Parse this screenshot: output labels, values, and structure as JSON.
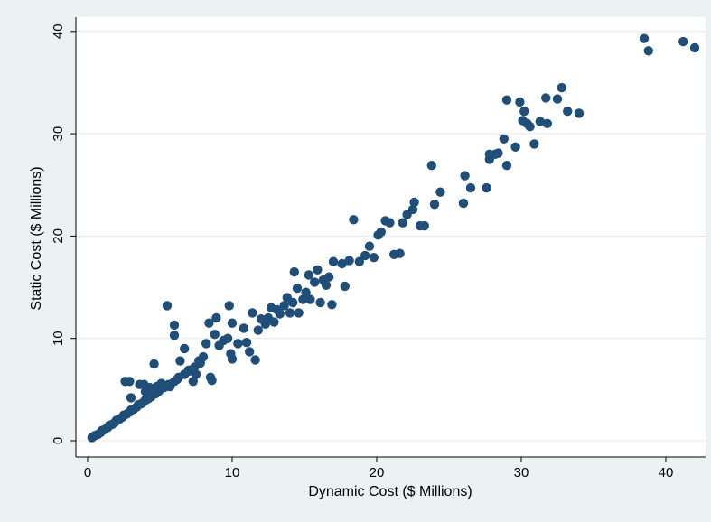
{
  "chart_data": {
    "type": "scatter",
    "xlabel": "Dynamic Cost ($ Millions)",
    "ylabel": "Static Cost ($ Millions)",
    "xlim": [
      0,
      42
    ],
    "ylim": [
      0,
      40
    ],
    "x_ticks": [
      "0",
      "10",
      "20",
      "30",
      "40"
    ],
    "y_ticks": [
      "0",
      "10",
      "20",
      "30",
      "40"
    ],
    "grid": "horizontal",
    "legend": "none",
    "colors": {
      "marker": "#1f4e79",
      "plot_bg": "#ffffff",
      "outer_bg": "#eaf2f3",
      "grid": "#e1e8ea"
    },
    "series": [
      {
        "points": [
          [
            0.3,
            0.3
          ],
          [
            0.5,
            0.5
          ],
          [
            0.7,
            0.6
          ],
          [
            0.9,
            0.8
          ],
          [
            1.0,
            1.0
          ],
          [
            1.2,
            1.1
          ],
          [
            1.4,
            1.3
          ],
          [
            1.5,
            1.5
          ],
          [
            1.7,
            1.6
          ],
          [
            1.9,
            1.8
          ],
          [
            2.0,
            2.0
          ],
          [
            2.2,
            2.1
          ],
          [
            2.4,
            2.3
          ],
          [
            2.5,
            2.5
          ],
          [
            2.7,
            2.6
          ],
          [
            2.9,
            2.8
          ],
          [
            3.0,
            3.0
          ],
          [
            3.2,
            3.1
          ],
          [
            3.4,
            3.3
          ],
          [
            3.5,
            3.5
          ],
          [
            3.7,
            3.6
          ],
          [
            3.9,
            3.8
          ],
          [
            4.0,
            4.0
          ],
          [
            4.2,
            4.1
          ],
          [
            4.4,
            4.3
          ],
          [
            4.5,
            4.5
          ],
          [
            4.7,
            4.6
          ],
          [
            4.9,
            4.8
          ],
          [
            5.0,
            5.0
          ],
          [
            5.3,
            5.2
          ],
          [
            5.6,
            5.5
          ],
          [
            6.0,
            5.8
          ],
          [
            6.3,
            6.2
          ],
          [
            6.7,
            6.5
          ],
          [
            7.0,
            6.9
          ],
          [
            7.4,
            7.2
          ],
          [
            7.8,
            7.6
          ],
          [
            2.6,
            5.8
          ],
          [
            2.9,
            5.8
          ],
          [
            3.0,
            4.2
          ],
          [
            3.6,
            5.5
          ],
          [
            3.9,
            5.5
          ],
          [
            4.0,
            4.8
          ],
          [
            4.3,
            5.2
          ],
          [
            4.6,
            7.5
          ],
          [
            4.8,
            5.3
          ],
          [
            5.1,
            5.6
          ],
          [
            5.5,
            13.2
          ],
          [
            5.7,
            5.3
          ],
          [
            6.0,
            11.3
          ],
          [
            6.0,
            10.3
          ],
          [
            6.2,
            6.0
          ],
          [
            6.4,
            7.8
          ],
          [
            6.7,
            9.0
          ],
          [
            7.0,
            6.8
          ],
          [
            7.3,
            5.8
          ],
          [
            7.5,
            6.5
          ],
          [
            7.7,
            7.8
          ],
          [
            8.0,
            8.2
          ],
          [
            8.2,
            9.5
          ],
          [
            8.4,
            11.5
          ],
          [
            8.5,
            6.2
          ],
          [
            8.6,
            5.9
          ],
          [
            8.8,
            10.4
          ],
          [
            8.9,
            12.0
          ],
          [
            9.1,
            9.3
          ],
          [
            9.4,
            9.8
          ],
          [
            9.7,
            10.0
          ],
          [
            9.8,
            13.2
          ],
          [
            9.9,
            8.5
          ],
          [
            10.0,
            8.0
          ],
          [
            10.0,
            11.5
          ],
          [
            10.4,
            9.5
          ],
          [
            10.8,
            11.0
          ],
          [
            11.0,
            9.6
          ],
          [
            11.2,
            8.7
          ],
          [
            11.4,
            12.5
          ],
          [
            11.6,
            7.9
          ],
          [
            11.8,
            10.8
          ],
          [
            12.0,
            11.9
          ],
          [
            12.3,
            11.4
          ],
          [
            12.5,
            12.0
          ],
          [
            12.7,
            13.0
          ],
          [
            12.9,
            11.6
          ],
          [
            13.1,
            12.8
          ],
          [
            13.3,
            12.4
          ],
          [
            13.6,
            13.2
          ],
          [
            13.8,
            14.0
          ],
          [
            14.0,
            12.5
          ],
          [
            14.2,
            13.5
          ],
          [
            14.3,
            16.5
          ],
          [
            14.5,
            14.9
          ],
          [
            14.6,
            12.5
          ],
          [
            14.9,
            13.8
          ],
          [
            15.1,
            14.5
          ],
          [
            15.3,
            16.2
          ],
          [
            15.4,
            13.8
          ],
          [
            15.7,
            15.5
          ],
          [
            15.9,
            16.7
          ],
          [
            16.1,
            13.5
          ],
          [
            16.3,
            15.7
          ],
          [
            16.5,
            15.2
          ],
          [
            16.7,
            16.0
          ],
          [
            16.9,
            13.3
          ],
          [
            17.0,
            17.5
          ],
          [
            17.6,
            17.3
          ],
          [
            17.8,
            15.1
          ],
          [
            18.1,
            17.6
          ],
          [
            18.4,
            21.6
          ],
          [
            18.8,
            17.5
          ],
          [
            19.2,
            18.1
          ],
          [
            19.5,
            19.0
          ],
          [
            19.8,
            17.9
          ],
          [
            20.1,
            20.1
          ],
          [
            20.3,
            20.4
          ],
          [
            20.6,
            21.5
          ],
          [
            20.9,
            21.3
          ],
          [
            21.2,
            18.2
          ],
          [
            21.6,
            18.3
          ],
          [
            21.8,
            21.3
          ],
          [
            22.1,
            22.1
          ],
          [
            22.5,
            22.6
          ],
          [
            22.6,
            23.3
          ],
          [
            23.0,
            21.0
          ],
          [
            23.3,
            21.0
          ],
          [
            24.0,
            23.1
          ],
          [
            23.8,
            26.9
          ],
          [
            24.4,
            24.3
          ],
          [
            26.0,
            23.2
          ],
          [
            26.1,
            25.9
          ],
          [
            26.5,
            24.7
          ],
          [
            27.6,
            24.7
          ],
          [
            27.8,
            27.5
          ],
          [
            27.8,
            28.0
          ],
          [
            28.2,
            28.0
          ],
          [
            28.4,
            28.1
          ],
          [
            28.8,
            29.5
          ],
          [
            29.0,
            26.9
          ],
          [
            29.0,
            33.3
          ],
          [
            29.6,
            28.7
          ],
          [
            29.9,
            33.1
          ],
          [
            30.1,
            31.3
          ],
          [
            30.2,
            32.2
          ],
          [
            30.4,
            31.0
          ],
          [
            30.6,
            30.7
          ],
          [
            30.9,
            29.0
          ],
          [
            31.3,
            31.2
          ],
          [
            31.7,
            33.5
          ],
          [
            31.8,
            31.0
          ],
          [
            32.5,
            33.4
          ],
          [
            32.8,
            34.5
          ],
          [
            33.2,
            32.2
          ],
          [
            34.0,
            32.0
          ],
          [
            38.5,
            39.3
          ],
          [
            38.8,
            38.1
          ],
          [
            41.2,
            39.0
          ],
          [
            42.0,
            38.4
          ]
        ]
      }
    ]
  }
}
